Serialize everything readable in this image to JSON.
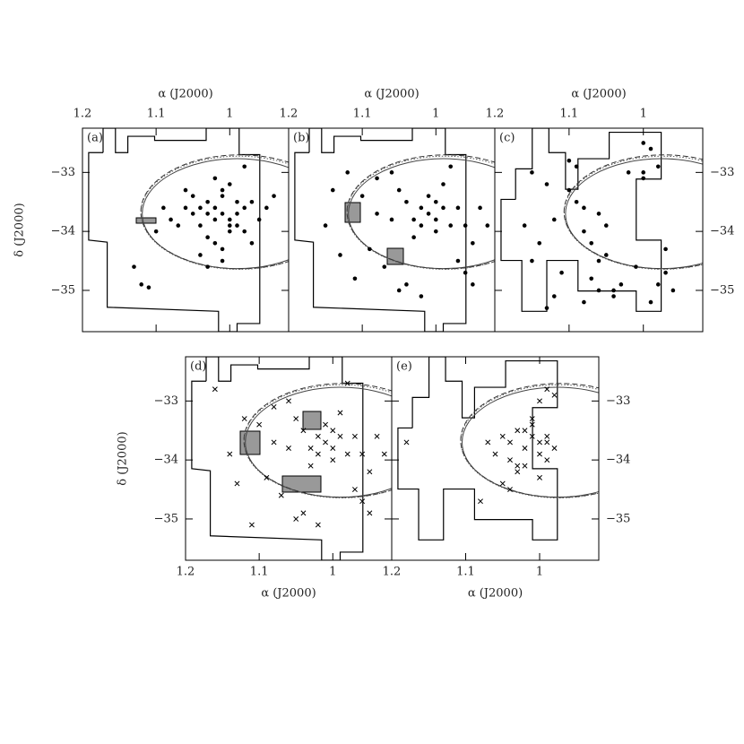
{
  "chart_data": [
    {
      "type": "scatter",
      "title": "(a)",
      "xlabel": "α (J2000)",
      "ylabel": "δ (J2000)",
      "x_axis_side": "top",
      "y_axis_side": "left",
      "marker": "dot",
      "color": "#000000",
      "xlim": [
        1.2,
        0.92
      ],
      "ylim": [
        -35.7,
        -32.25
      ],
      "xticks": [
        1.2,
        1.1,
        1
      ],
      "yticks": [
        {
          "value": -33,
          "label": "−33"
        },
        {
          "value": -34,
          "label": "−34"
        },
        {
          "value": -35,
          "label": "−35"
        }
      ],
      "x": [
        1.01,
        1.02,
        1.0,
        0.99,
        1.03,
        1.04,
        0.98,
        1.05,
        1.01,
        1.0,
        1.02,
        0.97,
        1.06,
        1.03,
        0.99,
        1.01,
        1.04,
        0.96,
        1.07,
        1.02,
        1.0,
        0.98,
        1.05,
        1.03,
        1.01,
        0.99,
        1.08,
        0.95,
        1.02,
        1.0,
        1.04,
        0.97,
        1.06,
        1.1,
        1.09,
        0.94,
        1.03,
        1.01,
        1.13,
        1.12,
        1.11,
        0.98
      ],
      "y": [
        -33.7,
        -33.6,
        -33.8,
        -33.7,
        -33.5,
        -33.9,
        -33.6,
        -33.7,
        -33.4,
        -34.0,
        -33.8,
        -33.5,
        -33.6,
        -34.1,
        -33.9,
        -33.3,
        -33.6,
        -33.8,
        -33.9,
        -34.2,
        -33.2,
        -34.0,
        -33.4,
        -33.7,
        -34.3,
        -33.5,
        -33.8,
        -33.6,
        -33.1,
        -33.9,
        -34.4,
        -34.2,
        -33.3,
        -34.0,
        -33.6,
        -33.4,
        -34.6,
        -34.5,
        -34.6,
        -34.9,
        -34.95,
        -32.9
      ]
    },
    {
      "type": "scatter",
      "title": "(b)",
      "xlabel": "α (J2000)",
      "x_axis_side": "top",
      "marker": "dot",
      "color": "#000000",
      "xlim": [
        1.2,
        0.92
      ],
      "ylim": [
        -35.7,
        -32.25
      ],
      "xticks": [
        1.2,
        1.1,
        1
      ],
      "x": [
        1.01,
        1.02,
        1.0,
        0.99,
        1.03,
        1.04,
        0.98,
        1.01,
        1.0,
        1.02,
        0.97,
        1.05,
        1.03,
        0.99,
        0.96,
        1.06,
        0.95,
        0.94,
        1.08,
        1.1,
        1.12,
        1.14,
        1.09,
        1.07,
        1.11,
        0.97,
        0.95,
        1.05,
        1.15,
        1.13,
        1.06,
        0.98,
        0.96,
        1.04,
        1.02,
        0.93,
        1.0,
        1.08
      ],
      "y": [
        -33.7,
        -33.6,
        -33.8,
        -33.6,
        -33.8,
        -33.5,
        -33.9,
        -33.4,
        -34.0,
        -33.9,
        -33.6,
        -33.3,
        -34.1,
        -33.2,
        -33.9,
        -33.8,
        -34.2,
        -33.6,
        -33.1,
        -33.4,
        -33.0,
        -33.3,
        -34.3,
        -34.6,
        -34.8,
        -34.5,
        -34.9,
        -35.0,
        -33.9,
        -34.4,
        -33.0,
        -32.9,
        -34.7,
        -34.9,
        -35.1,
        -33.9,
        -33.5,
        -33.7
      ]
    },
    {
      "type": "scatter",
      "title": "(c)",
      "xlabel": "α (J2000)",
      "x_axis_side": "top",
      "y_axis_side": "right",
      "marker": "dot",
      "color": "#000000",
      "xlim": [
        1.2,
        0.92
      ],
      "ylim": [
        -35.7,
        -32.25
      ],
      "xticks": [
        1.2,
        1.1,
        1
      ],
      "yticks": [
        {
          "value": -33,
          "label": "−33"
        },
        {
          "value": -34,
          "label": "−34"
        },
        {
          "value": -35,
          "label": "−35"
        }
      ],
      "x": [
        1.16,
        1.15,
        1.13,
        1.12,
        1.1,
        1.09,
        1.08,
        1.07,
        1.06,
        1.05,
        1.11,
        1.14,
        1.08,
        1.06,
        1.04,
        1.02,
        1.0,
        0.98,
        0.97,
        0.96,
        1.01,
        1.0,
        0.99,
        0.98,
        1.1,
        1.12,
        1.07,
        1.05,
        1.03,
        0.99,
        1.09,
        1.13,
        1.15,
        1.08,
        0.97,
        1.0,
        1.06,
        1.04
      ],
      "y": [
        -33.9,
        -34.5,
        -33.2,
        -35.1,
        -32.8,
        -33.5,
        -34.0,
        -34.8,
        -35.0,
        -34.4,
        -34.7,
        -34.2,
        -35.2,
        -33.7,
        -35.1,
        -33.0,
        -32.5,
        -32.9,
        -34.3,
        -35.0,
        -34.6,
        -33.1,
        -32.6,
        -34.9,
        -33.3,
        -33.8,
        -34.2,
        -33.9,
        -34.9,
        -35.2,
        -32.9,
        -35.3,
        -33.0,
        -33.6,
        -34.7,
        -33.0,
        -34.5,
        -35.0
      ]
    },
    {
      "type": "scatter",
      "title": "(d)",
      "xlabel": "α (J2000)",
      "ylabel": "δ (J2000)",
      "x_axis_side": "bottom",
      "y_axis_side": "left",
      "marker": "x",
      "color": "#000000",
      "xlim": [
        1.2,
        0.92
      ],
      "ylim": [
        -35.7,
        -32.25
      ],
      "xticks": [
        1.2,
        1.1,
        1
      ],
      "yticks": [
        {
          "value": -33,
          "label": "−33"
        },
        {
          "value": -34,
          "label": "−34"
        },
        {
          "value": -35,
          "label": "−35"
        }
      ],
      "x": [
        1.01,
        1.02,
        1.0,
        0.99,
        1.03,
        1.04,
        0.98,
        1.01,
        1.0,
        1.02,
        0.97,
        1.05,
        1.03,
        0.99,
        0.96,
        1.06,
        0.95,
        0.94,
        1.08,
        1.1,
        1.12,
        1.14,
        1.09,
        1.07,
        1.11,
        0.97,
        0.95,
        1.05,
        1.16,
        1.13,
        1.06,
        0.98,
        0.96,
        1.04,
        1.02,
        0.93,
        1.0,
        1.08
      ],
      "y": [
        -33.7,
        -33.6,
        -33.8,
        -33.6,
        -33.8,
        -33.5,
        -33.9,
        -33.4,
        -34.0,
        -33.9,
        -33.6,
        -33.3,
        -34.1,
        -33.2,
        -33.9,
        -33.8,
        -34.2,
        -33.6,
        -33.1,
        -33.4,
        -33.3,
        -33.9,
        -34.3,
        -34.6,
        -35.1,
        -34.5,
        -34.9,
        -35.0,
        -32.8,
        -34.4,
        -33.0,
        -32.7,
        -34.7,
        -34.9,
        -35.1,
        -33.9,
        -33.5,
        -33.7
      ]
    },
    {
      "type": "scatter",
      "title": "(e)",
      "xlabel": "α (J2000)",
      "x_axis_side": "bottom",
      "y_axis_side": "right",
      "marker": "x",
      "color": "#000000",
      "xlim": [
        1.2,
        0.92
      ],
      "ylim": [
        -35.7,
        -32.25
      ],
      "xticks": [
        1.2,
        1.1,
        1
      ],
      "yticks": [
        {
          "value": -33,
          "label": "−33"
        },
        {
          "value": -34,
          "label": "−34"
        },
        {
          "value": -35,
          "label": "−35"
        }
      ],
      "x": [
        1.0,
        1.01,
        1.02,
        0.99,
        1.03,
        1.0,
        1.01,
        1.04,
        0.99,
        1.02,
        1.05,
        0.98,
        1.03,
        1.06,
        1.01,
        1.0,
        1.04,
        1.02,
        0.99,
        1.07,
        1.05,
        1.03,
        1.18,
        0.99,
        0.98,
        1.0,
        1.04,
        1.08
      ],
      "y": [
        -33.7,
        -33.6,
        -33.8,
        -33.7,
        -33.5,
        -33.9,
        -33.4,
        -33.7,
        -34.0,
        -34.1,
        -33.6,
        -33.8,
        -34.2,
        -33.9,
        -33.3,
        -34.3,
        -34.0,
        -33.5,
        -33.6,
        -33.7,
        -34.4,
        -34.1,
        -33.7,
        -32.8,
        -32.9,
        -33.0,
        -34.5,
        -34.7
      ]
    }
  ]
}
